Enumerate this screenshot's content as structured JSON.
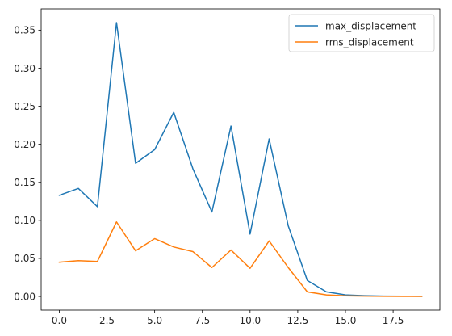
{
  "chart_data": {
    "type": "line",
    "title": "",
    "xlabel": "",
    "ylabel": "",
    "xlim": [
      -0.95,
      19.95
    ],
    "ylim": [
      -0.018,
      0.378
    ],
    "xticks": [
      0.0,
      2.5,
      5.0,
      7.5,
      10.0,
      12.5,
      15.0,
      17.5
    ],
    "xtick_labels": [
      "0.0",
      "2.5",
      "5.0",
      "7.5",
      "10.0",
      "12.5",
      "15.0",
      "17.5"
    ],
    "yticks": [
      0.0,
      0.05,
      0.1,
      0.15,
      0.2,
      0.25,
      0.3,
      0.35
    ],
    "ytick_labels": [
      "0.00",
      "0.05",
      "0.10",
      "0.15",
      "0.20",
      "0.25",
      "0.30",
      "0.35"
    ],
    "grid": false,
    "legend_position": "top-right",
    "x": [
      0,
      1,
      2,
      3,
      4,
      5,
      6,
      7,
      8,
      9,
      10,
      11,
      12,
      13,
      14,
      15,
      16,
      17,
      18,
      19
    ],
    "series": [
      {
        "name": "max_displacement",
        "color": "#1f77b4",
        "values": [
          0.133,
          0.142,
          0.118,
          0.36,
          0.175,
          0.193,
          0.242,
          0.168,
          0.111,
          0.224,
          0.082,
          0.207,
          0.093,
          0.021,
          0.006,
          0.002,
          0.001,
          0.0005,
          0.0003,
          0.0002
        ]
      },
      {
        "name": "rms_displacement",
        "color": "#ff7f0e",
        "values": [
          0.045,
          0.047,
          0.046,
          0.098,
          0.06,
          0.076,
          0.065,
          0.059,
          0.038,
          0.061,
          0.037,
          0.073,
          0.038,
          0.006,
          0.002,
          0.0008,
          0.0004,
          0.0002,
          0.0001,
          0.0001
        ]
      }
    ]
  }
}
